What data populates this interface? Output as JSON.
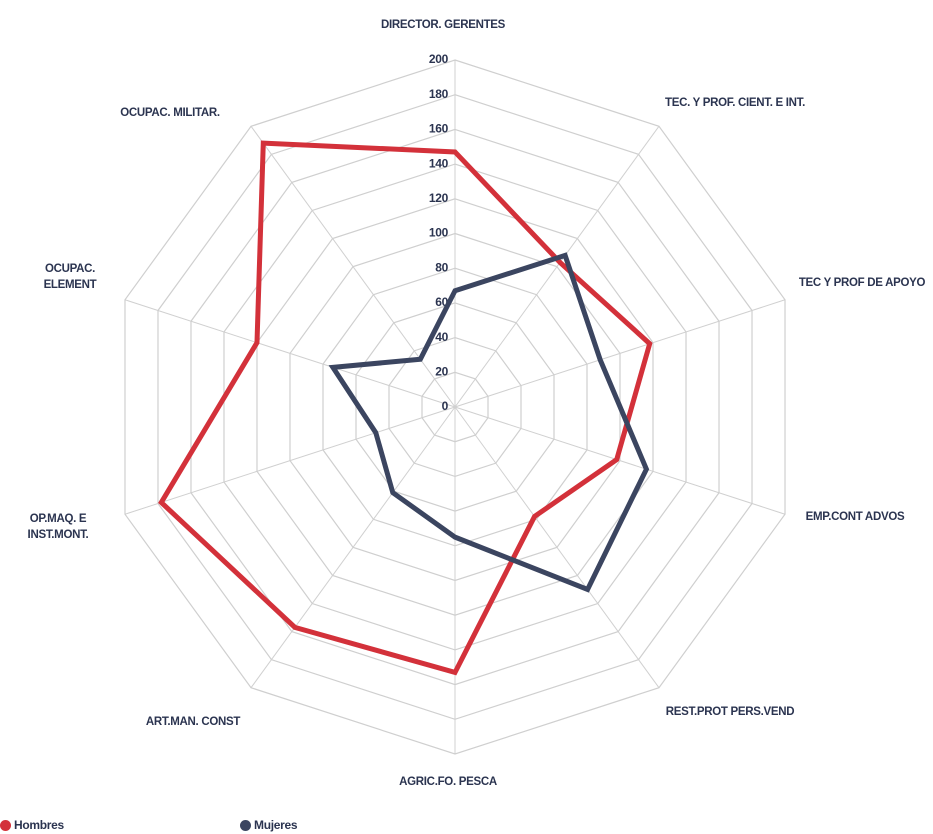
{
  "chart_data": {
    "type": "radar",
    "categories": [
      "DIRECTOR. GERENTES",
      "TEC. Y PROF. CIENT. E INT.",
      "TEC Y PROF DE APOYO",
      "EMP.CONT ADVOS",
      "REST.PROT PERS.VEND",
      "AGRIC.FO. PESCA",
      "ART.MAN. CONST",
      "OP.MAQ. E INST.MONT.",
      "OCUPAC. ELEMENT",
      "OCUPAC. MILITAR."
    ],
    "series": [
      {
        "name": "Hombres",
        "color": "#d3313a",
        "values": [
          147,
          103,
          118,
          98,
          78,
          153,
          157,
          178,
          120,
          188
        ]
      },
      {
        "name": "Mujeres",
        "color": "#3b4560",
        "values": [
          67,
          108,
          88,
          116,
          130,
          75,
          61,
          48,
          74,
          34
        ]
      }
    ],
    "ylim": [
      0,
      200
    ],
    "yticks": [
      0,
      20,
      40,
      60,
      80,
      100,
      120,
      140,
      160,
      180,
      200
    ],
    "grid": true,
    "legend": "bottom-left"
  }
}
